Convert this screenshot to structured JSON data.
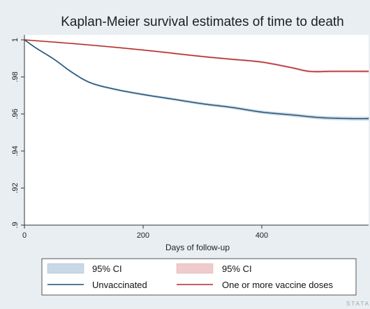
{
  "chart_data": {
    "type": "line",
    "title": "Kaplan-Meier survival estimates of time to death",
    "xlabel": "Days of follow-up",
    "ylabel": "",
    "xlim": [
      0,
      580
    ],
    "ylim": [
      0.9,
      1.0
    ],
    "xticks": [
      0,
      200,
      400
    ],
    "yticks": [
      1,
      0.98,
      0.96,
      0.94,
      0.92,
      0.9
    ],
    "ytick_labels": [
      "1",
      ".98",
      ".96",
      ".94",
      ".92",
      ".9"
    ],
    "grid": false,
    "legend_position": "bottom",
    "series": [
      {
        "name": "Unvaccinated",
        "color": "#1f4e6e",
        "ci_color": "#c9d8e6",
        "ci_name": "95% CI",
        "ci_halfwidth": 0.0006,
        "x": [
          0,
          20,
          50,
          80,
          110,
          150,
          200,
          250,
          300,
          350,
          400,
          450,
          500,
          550,
          580
        ],
        "y": [
          1.0,
          0.9955,
          0.9895,
          0.9825,
          0.977,
          0.9735,
          0.9705,
          0.968,
          0.9655,
          0.9635,
          0.961,
          0.9595,
          0.958,
          0.9575,
          0.9575
        ]
      },
      {
        "name": "One or more vaccine doses",
        "color": "#b22a2a",
        "ci_color": "#f0cbcd",
        "ci_name": "95% CI",
        "ci_halfwidth": 0.0003,
        "x": [
          0,
          100,
          200,
          300,
          350,
          400,
          450,
          480,
          520,
          580
        ],
        "y": [
          1.0,
          0.9975,
          0.9945,
          0.991,
          0.9895,
          0.988,
          0.985,
          0.983,
          0.983,
          0.983
        ]
      }
    ]
  },
  "watermark": "STATA"
}
